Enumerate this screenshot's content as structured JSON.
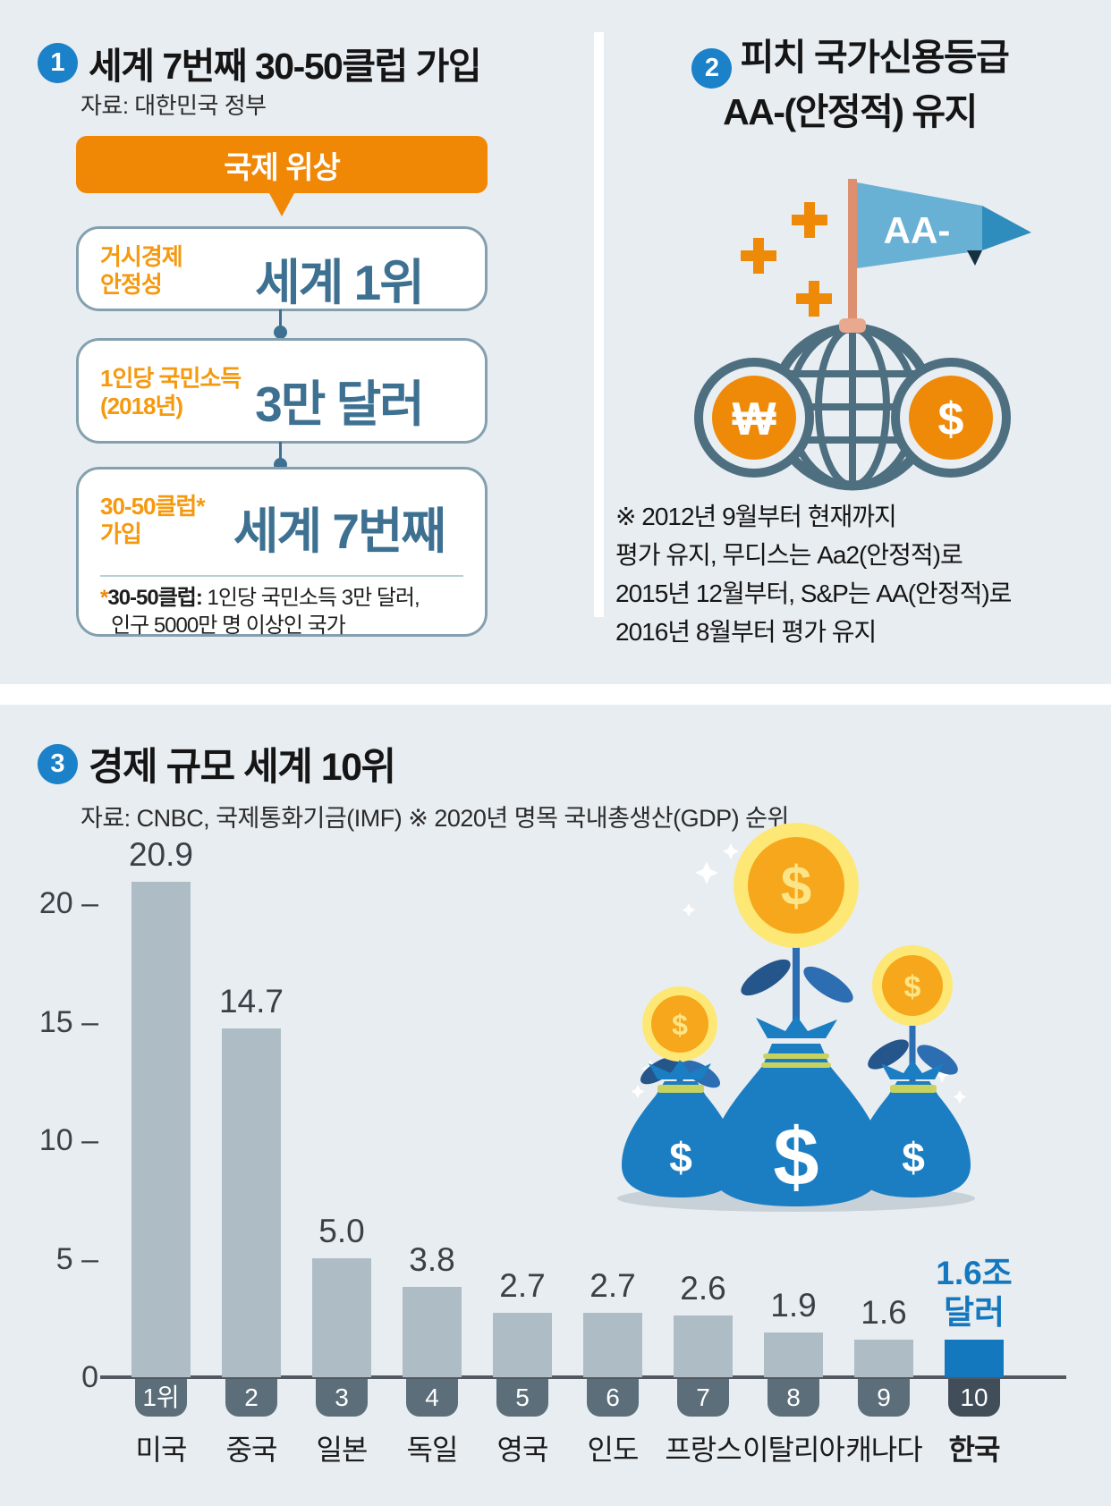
{
  "colors": {
    "background": "#e8edf1",
    "accent_blue": "#1b81c9",
    "orange": "#f08705",
    "teal_value_text": "#3e7191",
    "bar_gray": "#aebcc6",
    "korea_blue": "#1478be"
  },
  "section1": {
    "number": "1",
    "title": "세계 7번째 30-50클럽 가입",
    "source": "자료: 대한민국 정부",
    "banner": "국제 위상",
    "rows": [
      {
        "label1": "거시경제",
        "label2": "안정성",
        "value": "세계 1위"
      },
      {
        "label1": "1인당 국민소득",
        "label2": "(2018년)",
        "value": "3만 달러"
      },
      {
        "label1": "30-50클럽*",
        "label2": "가입",
        "value": "세계 7번째"
      }
    ],
    "footnote_star": "*",
    "footnote_bold": "30-50클럽:",
    "footnote_line1": " 1인당 국민소득 3만 달러,",
    "footnote_line2": "인구 5000만 명 이상인 국가"
  },
  "section2": {
    "number": "2",
    "title_line1": "피치 국가신용등급",
    "title_line2": "AA-(안정적) 유지",
    "flag_label": "AA-",
    "coin_won": "₩",
    "coin_dollar": "$",
    "note_line1": "※ 2012년 9월부터 현재까지",
    "note_line2": "평가 유지, 무디스는 Aa2(안정적)로",
    "note_line3": "2015년 12월부터, S&P는 AA(안정적)로",
    "note_line4": "2016년 8월부터 평가 유지"
  },
  "section3": {
    "number": "3",
    "title": "경제 규모 세계 10위",
    "source": "자료: CNBC, 국제통화기금(IMF) ※ 2020년 명목 국내총생산(GDP) 순위",
    "illustration_coin_symbol": "$"
  },
  "chart_data": {
    "type": "bar",
    "title": "경제 규모 세계 10위",
    "source": "자료: CNBC, 국제통화기금(IMF) ※ 2020년 명목 국내총생산(GDP) 순위",
    "categories": [
      "미국",
      "중국",
      "일본",
      "독일",
      "영국",
      "인도",
      "프랑스",
      "이탈리아",
      "캐나다",
      "한국"
    ],
    "values": [
      20.9,
      14.7,
      5.0,
      3.8,
      2.7,
      2.7,
      2.6,
      1.9,
      1.6,
      1.6
    ],
    "value_labels": [
      "20.9",
      "14.7",
      "5.0",
      "3.8",
      "2.7",
      "2.7",
      "2.6",
      "1.9",
      "1.6",
      "1.6조\n달러"
    ],
    "rank_labels": [
      "1위",
      "2",
      "3",
      "4",
      "5",
      "6",
      "7",
      "8",
      "9",
      "10"
    ],
    "unit": "조 달러",
    "yticks": [
      0,
      5,
      10,
      15,
      20
    ],
    "ylim": [
      0,
      22
    ],
    "grid": false,
    "legend": false,
    "highlight_index": 9,
    "bar_color": "#aebcc6",
    "highlight_color": "#1478be",
    "rank_chip_color": "#5c6e7a",
    "rank_chip_highlight_color": "#414d59"
  }
}
